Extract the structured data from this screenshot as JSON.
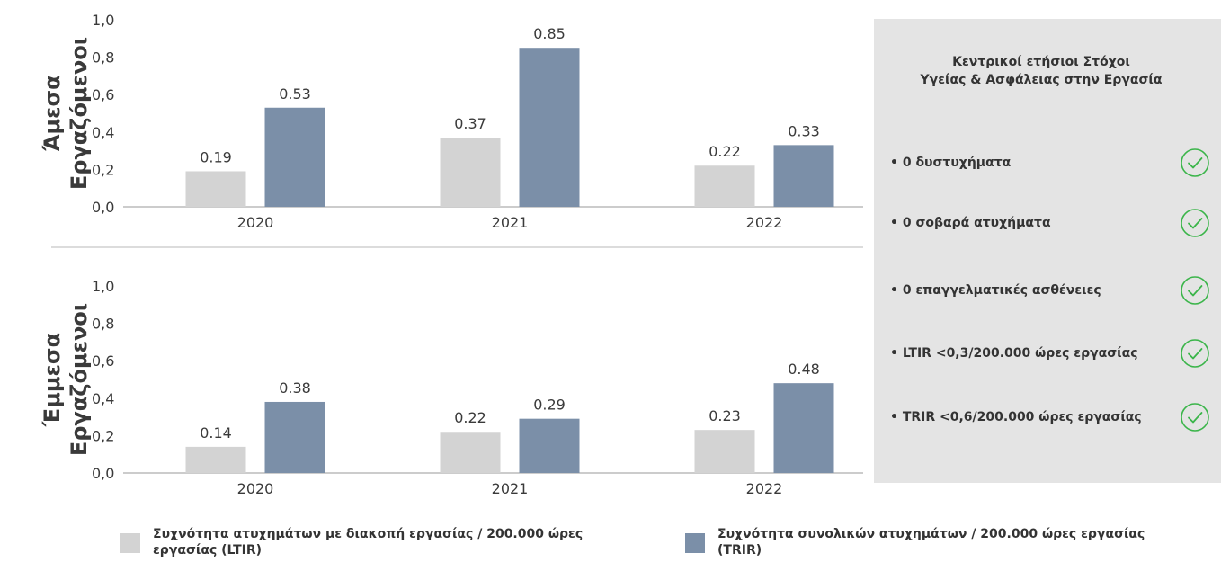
{
  "colors": {
    "ltir": "#d3d3d3",
    "trir": "#7b8fa8",
    "panel": "#e4e4e4",
    "check": "#3bb54a"
  },
  "chart_data": [
    {
      "type": "bar",
      "title": "Άμεσα Εργαζόμενοι",
      "categories": [
        "2020",
        "2021",
        "2022"
      ],
      "series": [
        {
          "name": "Συχνότητα ατυχημάτων με διακοπή εργασίας / 200.000 ώρες εργασίας (LTIR)",
          "values": [
            0.19,
            0.37,
            0.22
          ],
          "labels": [
            "0.19",
            "0.37",
            "0.22"
          ]
        },
        {
          "name": "Συχνότητα συνολικών ατυχημάτων / 200.000 ώρες εργασίας (TRIR)",
          "values": [
            0.53,
            0.85,
            0.33
          ],
          "labels": [
            "0.53",
            "0.85",
            "0.33"
          ]
        }
      ],
      "yticks": [
        "0,0",
        "0,2",
        "0,4",
        "0,6",
        "0,8",
        "1,0"
      ],
      "ylim": [
        0,
        1.0
      ],
      "grid": false
    },
    {
      "type": "bar",
      "title": "Έμμεσα Εργαζόμενοι",
      "categories": [
        "2020",
        "2021",
        "2022"
      ],
      "series": [
        {
          "name": "Συχνότητα ατυχημάτων με διακοπή εργασίας / 200.000 ώρες εργασίας (LTIR)",
          "values": [
            0.14,
            0.22,
            0.23
          ],
          "labels": [
            "0.14",
            "0.22",
            "0.23"
          ]
        },
        {
          "name": "Συχνότητα συνολικών ατυχημάτων / 200.000 ώρες εργασίας (TRIR)",
          "values": [
            0.38,
            0.29,
            0.48
          ],
          "labels": [
            "0.38",
            "0.29",
            "0.48"
          ]
        }
      ],
      "yticks": [
        "0,0",
        "0,2",
        "0,4",
        "0,6",
        "0,8",
        "1,0"
      ],
      "ylim": [
        0,
        1.0
      ],
      "grid": false
    }
  ],
  "row_titles": [
    [
      "Άμεσα",
      "Εργαζόμενοι"
    ],
    [
      "Έμμεσα",
      "Εργαζόμενοι"
    ]
  ],
  "goals": {
    "title": "Κεντρικοί ετήσιοι Στόχοι\nΥγείας & Ασφάλειας στην Εργασία",
    "items": [
      "• 0 δυστυχήματα",
      "• 0 σοβαρά ατυχήματα",
      "• 0 επαγγελματικές ασθένειες",
      "• LTIR <0,3/200.000 ώρες εργασίας",
      "• TRIR <0,6/200.000 ώρες εργασίας"
    ],
    "icon": "check-circle-icon"
  },
  "legend": {
    "ltir": "Συχνότητα ατυχημάτων με διακοπή εργασίας / 200.000 ώρες εργασίας (LTIR)",
    "trir": "Συχνότητα συνολικών ατυχημάτων / 200.000 ώρες εργασίας (TRIR)"
  }
}
